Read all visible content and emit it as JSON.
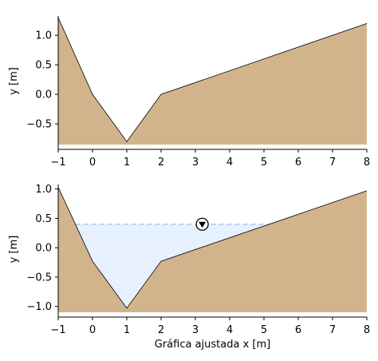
{
  "chart_data": [
    {
      "type": "area",
      "title": "",
      "xlabel": "",
      "ylabel": "y [m]",
      "xlim": [
        -1,
        8
      ],
      "ylim": [
        -0.85,
        1.3
      ],
      "xticks": [
        -1,
        0,
        1,
        2,
        3,
        4,
        5,
        6,
        7,
        8
      ],
      "yticks": [
        -0.5,
        0.0,
        0.5,
        1.0
      ],
      "ytick_labels": [
        "−0.5",
        "0.0",
        "0.5",
        "1.0"
      ],
      "grid": false,
      "colors": {
        "terrain": "#d2b48c",
        "edge": "#000000"
      },
      "series": [
        {
          "x": [
            -1,
            0,
            1,
            2,
            8
          ],
          "y": [
            1.3,
            0.0,
            -0.8,
            0.0,
            1.2
          ]
        }
      ]
    },
    {
      "type": "area",
      "title": "",
      "xlabel": "Gráfica ajustada x [m]",
      "ylabel": "y [m]",
      "xlim": [
        -1,
        8
      ],
      "ylim": [
        -1.1,
        1.05
      ],
      "xticks": [
        -1,
        0,
        1,
        2,
        3,
        4,
        5,
        6,
        7,
        8
      ],
      "yticks": [
        -1.0,
        -0.5,
        0.0,
        0.5,
        1.0
      ],
      "ytick_labels": [
        "−1.0",
        "−0.5",
        "0.0",
        "0.5",
        "1.0"
      ],
      "grid": false,
      "colors": {
        "terrain": "#d2b48c",
        "edge": "#000000",
        "water": "#e6f0ff",
        "water_line": "#a8c8ea"
      },
      "series": [
        {
          "x": [
            -1,
            0,
            1,
            2,
            8
          ],
          "y": [
            1.03,
            -0.23,
            -1.03,
            -0.23,
            0.97
          ]
        }
      ],
      "water_level": 0.4,
      "water_symbol": {
        "x": 3.2,
        "y": 0.4,
        "icon": "water-level-triangle-icon"
      }
    }
  ]
}
